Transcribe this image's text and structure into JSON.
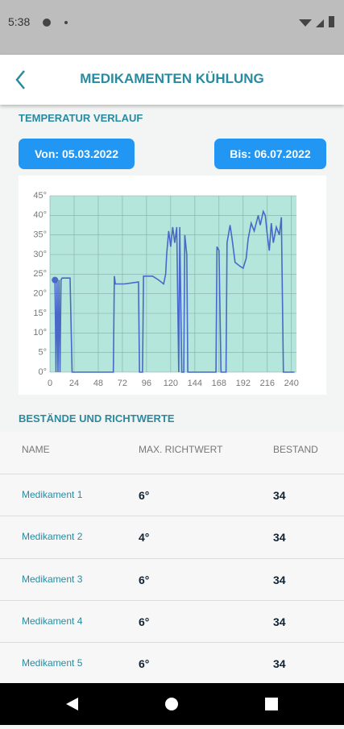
{
  "status_bar": {
    "time": "5:38"
  },
  "app_bar": {
    "title": "MEDIKAMENTEN KÜHLUNG"
  },
  "section_chart": "TEMPERATUR VERLAUF",
  "buttons": [
    "Von: 05.03.2022",
    "Bis: 06.07.2022"
  ],
  "chart_data": {
    "type": "line",
    "x": [
      5,
      6,
      7,
      8,
      9,
      10,
      11,
      12,
      20,
      22,
      63,
      64,
      65,
      74,
      88,
      89,
      92,
      93,
      102,
      108,
      113,
      115,
      116,
      118,
      120,
      122,
      124,
      126,
      128,
      129,
      131,
      133,
      134,
      136,
      137,
      165,
      166,
      168,
      170,
      175,
      176,
      179,
      181,
      184,
      189,
      192,
      195,
      197,
      200,
      203,
      207,
      209,
      212,
      214,
      216,
      218,
      220,
      222,
      225,
      228,
      230,
      232,
      243
    ],
    "series": [
      {
        "name": "Temperatur",
        "color": "#4a68c8",
        "values": [
          23.5,
          0,
          23.5,
          0,
          23.5,
          0,
          23.5,
          24,
          24,
          0,
          0,
          24.5,
          22.5,
          22.5,
          23,
          0,
          0,
          24.5,
          24.5,
          23.5,
          22.5,
          25,
          30,
          36,
          32,
          37,
          33,
          37,
          0,
          37,
          0,
          0,
          35,
          30,
          0,
          0,
          32,
          31,
          0,
          0,
          33,
          37.5,
          34,
          28,
          27,
          26.5,
          29,
          34,
          38,
          36,
          40,
          37.5,
          41,
          40,
          35,
          31,
          38,
          33,
          37,
          35,
          39.5,
          0,
          0
        ]
      }
    ],
    "xlim": [
      0,
      245
    ],
    "ylim": [
      0,
      45
    ],
    "xticks": [
      0,
      24,
      48,
      72,
      96,
      120,
      144,
      168,
      192,
      216,
      240
    ],
    "yticks": [
      {
        "value": 0,
        "label": "0°"
      },
      {
        "value": 5,
        "label": "5°"
      },
      {
        "value": 10,
        "label": "10°"
      },
      {
        "value": 15,
        "label": "15°"
      },
      {
        "value": 20,
        "label": "20°"
      },
      {
        "value": 25,
        "label": "25°"
      },
      {
        "value": 30,
        "label": "30°"
      },
      {
        "value": 35,
        "label": "35°"
      },
      {
        "value": 40,
        "label": "40°"
      },
      {
        "value": 45,
        "label": "45°"
      }
    ],
    "grid": true,
    "background": "#b4e6dc"
  },
  "section_table": "BESTÄNDE UND RICHTWERTE",
  "table": {
    "headers": [
      "NAME",
      "MAX. RICHTWERT",
      "BESTAND"
    ],
    "rows": [
      [
        "Medikament 1",
        "6°",
        34
      ],
      [
        "Medikament 2",
        "4°",
        34
      ],
      [
        "Medikament 3",
        "6°",
        34
      ],
      [
        "Medikament 4",
        "6°",
        34
      ],
      [
        "Medikament 5",
        "6°",
        34
      ]
    ]
  }
}
